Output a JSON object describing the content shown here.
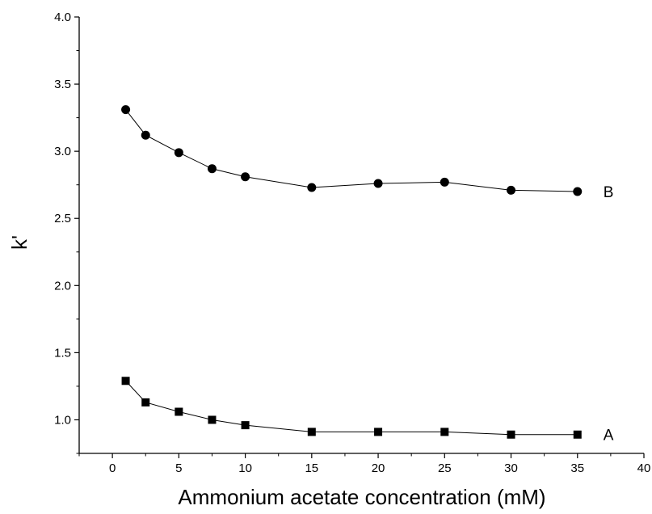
{
  "chart_data": {
    "type": "line",
    "title": "",
    "xlabel": "Ammonium acetate concentration (mM)",
    "ylabel": "k'",
    "xlim": [
      -2.5,
      40
    ],
    "ylim": [
      0.75,
      4.0
    ],
    "xticks": [
      "0",
      "5",
      "10",
      "15",
      "20",
      "25",
      "30",
      "35",
      "40"
    ],
    "yticks": [
      "1.0",
      "1.5",
      "2.0",
      "2.5",
      "3.0",
      "3.5",
      "4.0"
    ],
    "grid": false,
    "series": [
      {
        "name": "A",
        "marker": "square",
        "x": [
          1,
          2.5,
          5,
          7.5,
          10,
          15,
          20,
          25,
          30,
          35
        ],
        "y": [
          1.29,
          1.13,
          1.06,
          1.0,
          0.96,
          0.91,
          0.91,
          0.91,
          0.89,
          0.89
        ]
      },
      {
        "name": "B",
        "marker": "circle",
        "x": [
          1,
          2.5,
          5,
          7.5,
          10,
          15,
          20,
          25,
          30,
          35
        ],
        "y": [
          3.31,
          3.12,
          2.99,
          2.87,
          2.81,
          2.73,
          2.76,
          2.77,
          2.71,
          2.7
        ]
      }
    ]
  }
}
